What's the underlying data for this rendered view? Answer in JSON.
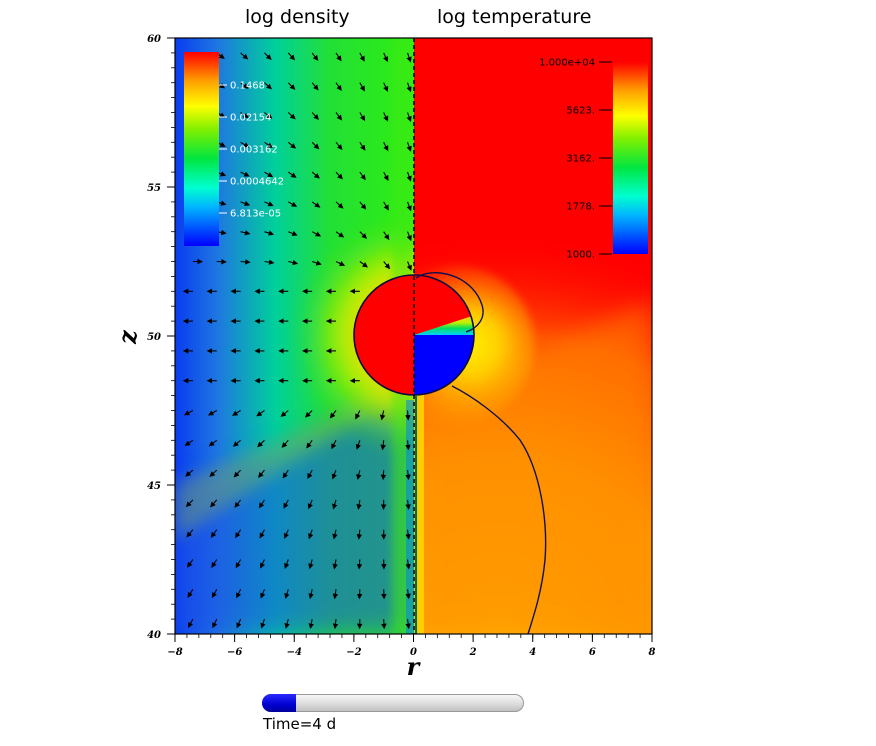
{
  "chart_data": {
    "type": "heatmap",
    "panels": [
      {
        "title": "log density",
        "x_range": [
          -8,
          0
        ],
        "colorbar": {
          "scale": "log",
          "tick_labels": [
            "0.1468",
            "0.02154",
            "0.003162",
            "0.0004642",
            "6.813e-05"
          ],
          "tick_values": [
            0.1468,
            0.02154,
            0.003162,
            0.0004642,
            6.813e-05
          ],
          "colormap": "rainbow (blue-low, red-high)"
        },
        "velocity_vectors": true
      },
      {
        "title": "log temperature",
        "x_range": [
          0,
          8
        ],
        "colorbar": {
          "scale": "log",
          "tick_labels": [
            "1.000e+04",
            "5623.",
            "3162.",
            "1778.",
            "1000."
          ],
          "tick_values": [
            10000,
            5623,
            3162,
            1778,
            1000
          ],
          "colormap": "rainbow (blue-low, red-high)"
        },
        "contour": true
      }
    ],
    "xlabel": "r",
    "ylabel": "z",
    "xlim": [
      -8,
      8
    ],
    "ylim": [
      40,
      60
    ],
    "x_ticks": [
      "−8",
      "−6",
      "−4",
      "−2",
      "0",
      "2",
      "4",
      "6",
      "8"
    ],
    "y_ticks": [
      "40",
      "45",
      "50",
      "55",
      "60"
    ],
    "planet": {
      "center_r": 0,
      "center_z": 50,
      "radius": 2
    }
  },
  "time_slider": {
    "label": "Time=4 d",
    "progress": 0.13,
    "fill_color": "#0000d0"
  }
}
